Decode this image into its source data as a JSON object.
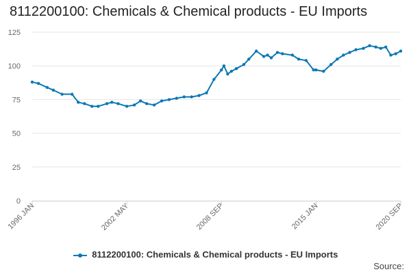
{
  "title": "8112200100: Chemicals & Chemical products - EU Imports",
  "legend_label": "8112200100: Chemicals & Chemical products - EU Imports",
  "source_label": "Source:",
  "colors": {
    "series": "#0a78b4",
    "grid": "#e6e6e6",
    "axis": "#cccccc"
  },
  "chart_data": {
    "type": "line",
    "title": "8112200100: Chemicals & Chemical products - EU Imports",
    "xlabel": "",
    "ylabel": "",
    "ylim": [
      0,
      125
    ],
    "yticks": [
      0,
      25,
      50,
      75,
      100,
      125
    ],
    "xlim": [
      "1996 JAN",
      "2020 SEP"
    ],
    "xtick_labels": [
      "1996 JAN",
      "2002 MAY",
      "2008 SEP",
      "2015 JAN",
      "2020 SEP"
    ],
    "grid": true,
    "legend": "bottom",
    "series": [
      {
        "name": "8112200100: Chemicals & Chemical products - EU Imports",
        "x": [
          "1996 JAN",
          "1996 JUN",
          "1997 JAN",
          "1997 JUN",
          "1998 JAN",
          "1998 SEP",
          "1999 FEB",
          "1999 JUL",
          "2000 JAN",
          "2000 JUN",
          "2001 JAN",
          "2001 MAY",
          "2001 OCT",
          "2002 MAY",
          "2002 NOV",
          "2003 APR",
          "2003 SEP",
          "2004 MAR",
          "2004 SEP",
          "2005 MAR",
          "2005 SEP",
          "2006 MAR",
          "2006 SEP",
          "2007 MAR",
          "2007 SEP",
          "2008 MAR",
          "2008 SEP",
          "2008 NOV",
          "2009 FEB",
          "2009 MAY",
          "2009 SEP",
          "2010 MAR",
          "2010 JUL",
          "2011 JAN",
          "2011 JUL",
          "2011 OCT",
          "2012 JAN",
          "2012 JUN",
          "2012 OCT",
          "2013 JUN",
          "2013 NOV",
          "2014 MAY",
          "2014 NOV",
          "2015 JAN",
          "2015 JUL",
          "2016 JAN",
          "2016 JUN",
          "2016 NOV",
          "2017 APR",
          "2017 SEP",
          "2018 MAR",
          "2018 AUG",
          "2019 JAN",
          "2019 MAY",
          "2019 SEP",
          "2020 JAN",
          "2020 MAY",
          "2020 SEP"
        ],
        "values": [
          88,
          87,
          84,
          82,
          79,
          79,
          73,
          72,
          70,
          70,
          72,
          73,
          72,
          70,
          71,
          74,
          72,
          71,
          74,
          75,
          76,
          77,
          77,
          78,
          80,
          90,
          97,
          100,
          94,
          96,
          98,
          101,
          105,
          111,
          107,
          108,
          106,
          110,
          109,
          108,
          105,
          104,
          97,
          97,
          96,
          101,
          105,
          108,
          110,
          112,
          113,
          115,
          114,
          113,
          114,
          108,
          109,
          111
        ]
      }
    ]
  }
}
